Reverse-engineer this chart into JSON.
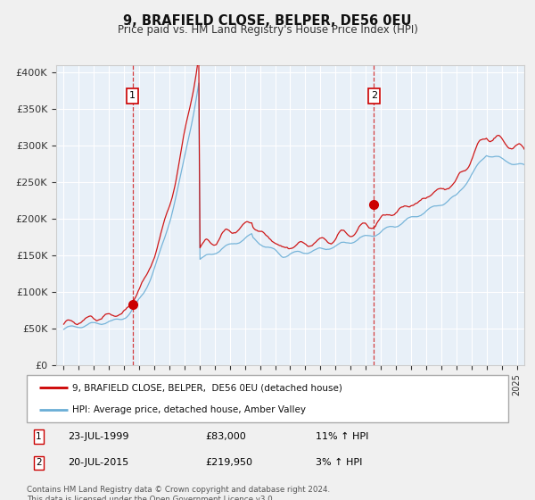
{
  "title": "9, BRAFIELD CLOSE, BELPER, DE56 0EU",
  "subtitle": "Price paid vs. HM Land Registry's House Price Index (HPI)",
  "legend_line1": "9, BRAFIELD CLOSE, BELPER,  DE56 0EU (detached house)",
  "legend_line2": "HPI: Average price, detached house, Amber Valley",
  "annotation1_date": "23-JUL-1999",
  "annotation1_price": "£83,000",
  "annotation1_hpi": "11% ↑ HPI",
  "annotation1_year": 1999.55,
  "annotation1_value": 83000,
  "annotation2_date": "20-JUL-2015",
  "annotation2_price": "£219,950",
  "annotation2_hpi": "3% ↑ HPI",
  "annotation2_year": 2015.55,
  "annotation2_value": 219950,
  "footer": "Contains HM Land Registry data © Crown copyright and database right 2024.\nThis data is licensed under the Open Government Licence v3.0.",
  "hpi_color": "#6aaed6",
  "price_color": "#cc0000",
  "plot_bg": "#e8f0f8",
  "grid_color": "#ffffff",
  "ylim": [
    0,
    410000
  ],
  "yticks": [
    0,
    50000,
    100000,
    150000,
    200000,
    250000,
    300000,
    350000,
    400000
  ],
  "xlim_start": 1994.5,
  "xlim_end": 2025.5
}
